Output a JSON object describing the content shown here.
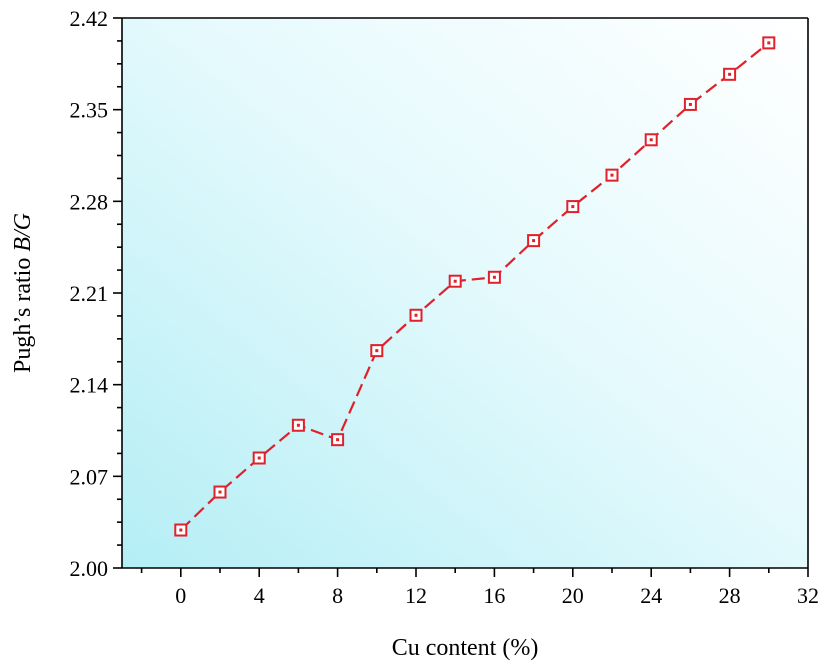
{
  "chart_data": {
    "type": "line",
    "xlabel": "Cu content (%)",
    "ylabel": "Pugh’s ratio B/G",
    "ylabel_parts": {
      "prefix": "Pugh’s ratio ",
      "italic": "B/G"
    },
    "xlim": [
      -3,
      32
    ],
    "ylim": [
      2.0,
      2.42
    ],
    "x_ticks": [
      0,
      4,
      8,
      12,
      16,
      20,
      24,
      28,
      32
    ],
    "y_ticks": [
      2.0,
      2.07,
      2.14,
      2.21,
      2.28,
      2.35,
      2.42
    ],
    "x_tick_labels": [
      "0",
      "4",
      "8",
      "12",
      "16",
      "20",
      "24",
      "28",
      "32"
    ],
    "y_tick_labels": [
      "2.00",
      "2.07",
      "2.14",
      "2.21",
      "2.28",
      "2.35",
      "2.42"
    ],
    "grid": false,
    "background_gradient": [
      "#b4eef5",
      "#ffffff"
    ],
    "series": [
      {
        "x": [
          0,
          2,
          4,
          6,
          8,
          10,
          12,
          14,
          16,
          18,
          20,
          22,
          24,
          26,
          28,
          30
        ],
        "y": [
          2.029,
          2.058,
          2.084,
          2.109,
          2.098,
          2.166,
          2.193,
          2.219,
          2.222,
          2.25,
          2.276,
          2.3,
          2.327,
          2.354,
          2.377,
          2.401
        ],
        "color": "#e0202a",
        "line_style": "dashed",
        "marker": "square-dot"
      }
    ]
  }
}
